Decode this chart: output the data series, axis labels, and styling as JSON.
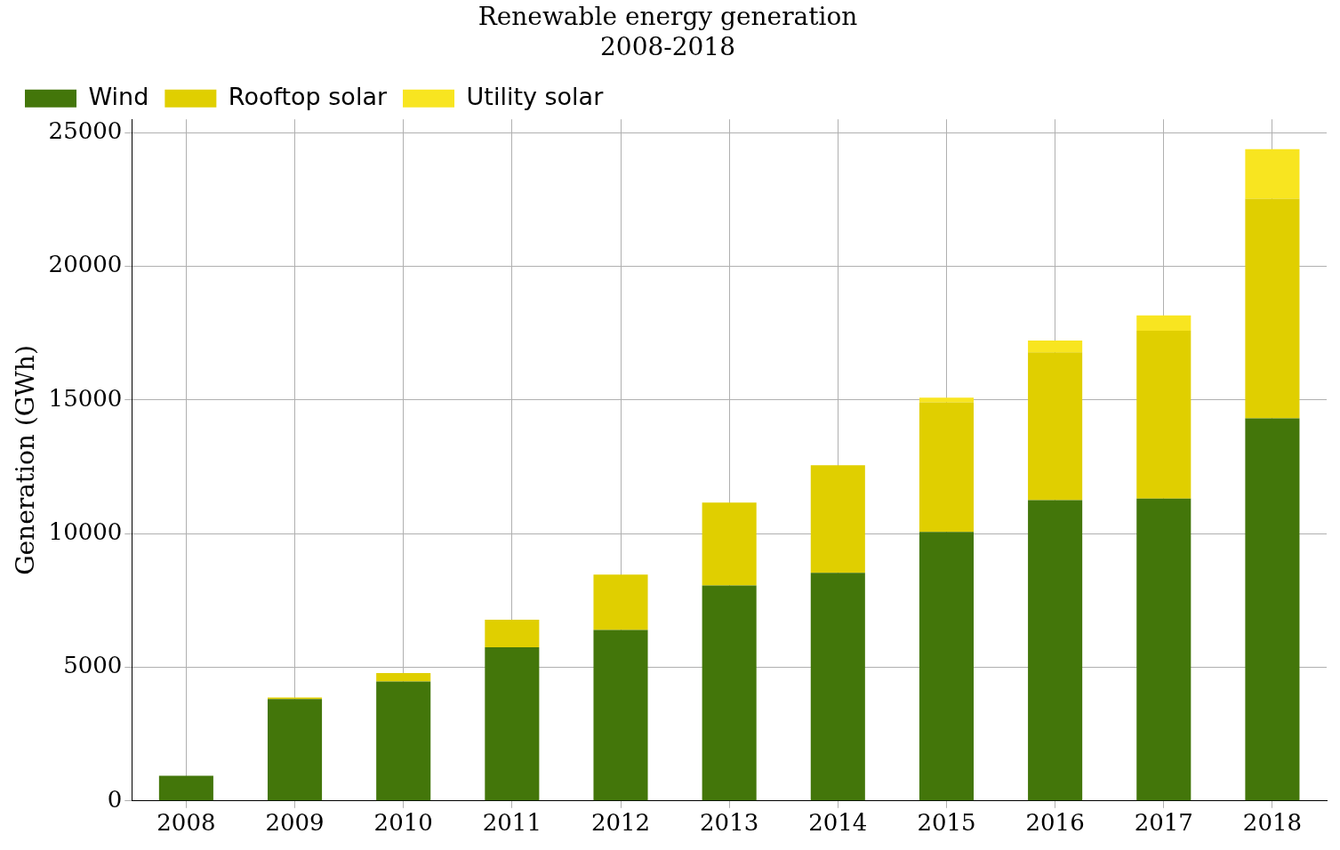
{
  "chart_data": {
    "type": "bar",
    "title": "Renewable energy generation",
    "subtitle": "2008-2018",
    "ylabel": "Generation (GWh)",
    "categories": [
      "2008",
      "2009",
      "2010",
      "2011",
      "2012",
      "2013",
      "2014",
      "2015",
      "2016",
      "2017",
      "2018"
    ],
    "stacked": true,
    "series": [
      {
        "name": "Wind",
        "color": "#43760a",
        "values": [
          940,
          3810,
          4470,
          5750,
          6400,
          8060,
          8530,
          10060,
          11250,
          11310,
          14310
        ]
      },
      {
        "name": "Rooftop solar",
        "color": "#e0cf00",
        "values": [
          0,
          60,
          310,
          1030,
          2070,
          3100,
          4030,
          4850,
          5530,
          6280,
          8220
        ]
      },
      {
        "name": "Utility solar",
        "color": "#f8e520",
        "values": [
          0,
          0,
          0,
          0,
          0,
          0,
          0,
          180,
          440,
          570,
          1850
        ]
      }
    ],
    "ylim": [
      0,
      25500
    ],
    "yticks": [
      0,
      5000,
      10000,
      15000,
      20000,
      25000
    ],
    "grid": true,
    "legend": "top left"
  }
}
